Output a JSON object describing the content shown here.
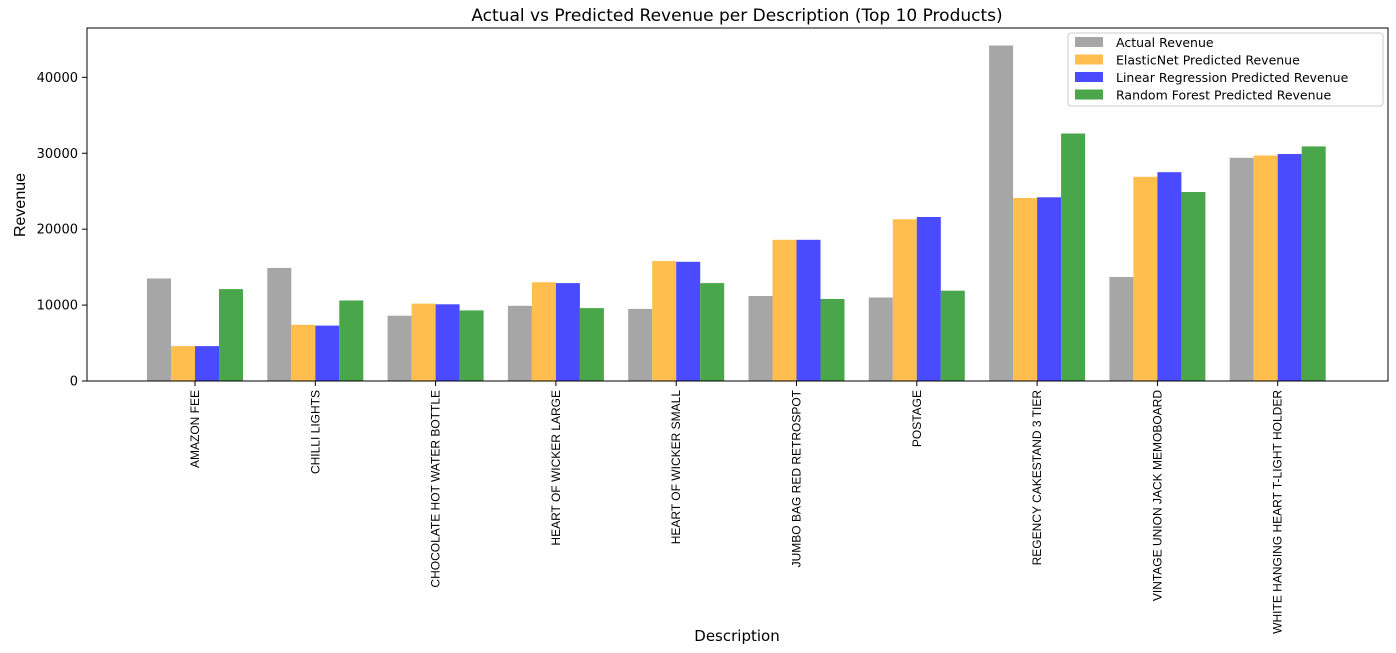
{
  "chart_data": {
    "type": "bar",
    "title": "Actual vs Predicted Revenue per Description (Top 10 Products)",
    "xlabel": "Description",
    "ylabel": "Revenue",
    "ylim": [
      0,
      46500
    ],
    "yticks": [
      0,
      10000,
      20000,
      30000,
      40000
    ],
    "grid": false,
    "legend_position": "top-right",
    "categories": [
      "AMAZON FEE",
      "CHILLI LIGHTS",
      "CHOCOLATE HOT WATER BOTTLE",
      "HEART OF WICKER LARGE",
      "HEART OF WICKER SMALL",
      "JUMBO BAG RED RETROSPOT",
      "POSTAGE",
      "REGENCY CAKESTAND 3 TIER",
      "VINTAGE UNION JACK MEMOBOARD",
      "WHITE HANGING HEART T-LIGHT HOLDER"
    ],
    "series": [
      {
        "name": "Actual Revenue",
        "color": "#a6a6a6",
        "values": [
          13500,
          14900,
          8600,
          9900,
          9500,
          11200,
          11000,
          44200,
          13700,
          29400
        ]
      },
      {
        "name": "ElasticNet Predicted Revenue",
        "color": "#ffbe4d",
        "values": [
          4600,
          7400,
          10200,
          13000,
          15800,
          18600,
          21300,
          24100,
          26900,
          29700
        ]
      },
      {
        "name": "Linear Regression Predicted Revenue",
        "color": "#4a4aff",
        "values": [
          4600,
          7300,
          10100,
          12900,
          15700,
          18600,
          21600,
          24200,
          27500,
          29900
        ]
      },
      {
        "name": "Random Forest Predicted Revenue",
        "color": "#4aa64a",
        "values": [
          12100,
          10600,
          9300,
          9600,
          12900,
          10800,
          11900,
          32600,
          24900,
          30900
        ]
      }
    ]
  }
}
